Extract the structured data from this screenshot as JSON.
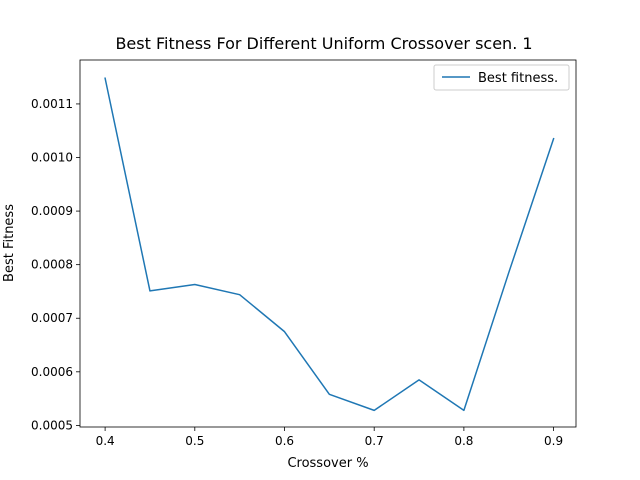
{
  "chart_data": {
    "type": "line",
    "title": "Best Fitness For Different Uniform Crossover scen. 1",
    "xlabel": "Crossover  %",
    "ylabel": "Best Fitness",
    "xlim": [
      0.372,
      0.925
    ],
    "ylim": [
      0.000497,
      0.001182
    ],
    "x_ticks": [
      0.4,
      0.5,
      0.6,
      0.7,
      0.8,
      0.9
    ],
    "x_tick_labels": [
      "0.4",
      "0.5",
      "0.6",
      "0.7",
      "0.8",
      "0.9"
    ],
    "y_ticks": [
      0.0005,
      0.0006,
      0.0007,
      0.0008,
      0.0009,
      0.001,
      0.0011
    ],
    "y_tick_labels": [
      "0.0005",
      "0.0006",
      "0.0007",
      "0.0008",
      "0.0009",
      "0.0010",
      "0.0011"
    ],
    "grid": false,
    "legend_position": "upper right",
    "series": [
      {
        "name": "Best fitness.",
        "color": "#1f77b4",
        "x": [
          0.4,
          0.45,
          0.5,
          0.55,
          0.6,
          0.65,
          0.7,
          0.75,
          0.8,
          0.85,
          0.9
        ],
        "y": [
          0.001148,
          0.000751,
          0.000763,
          0.000744,
          0.000675,
          0.000558,
          0.000528,
          0.000585,
          0.000528,
          0.000785,
          0.001035
        ]
      }
    ]
  }
}
